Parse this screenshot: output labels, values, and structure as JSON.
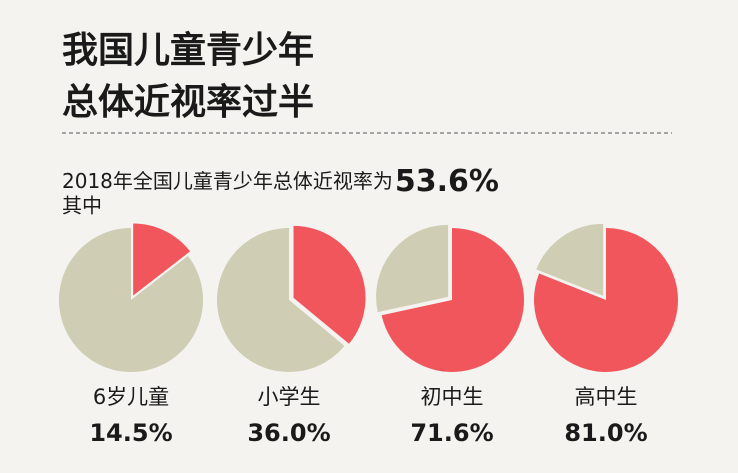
{
  "header": {
    "title_lines": [
      "我国儿童青少年",
      "总体近视率过半"
    ]
  },
  "subtitle": {
    "text": "2018年全国儿童青少年总体近视率为",
    "highlight": "53.6%"
  },
  "note": "其中",
  "chart_data": [
    {
      "type": "pie",
      "title": "6岁儿童",
      "values": [
        14.5
      ],
      "value_labels": [
        "14.5%"
      ],
      "color": "#f2565d",
      "rest_color": "#cfcdb3"
    },
    {
      "type": "pie",
      "title": "小学生",
      "values": [
        36.0
      ],
      "value_labels": [
        "36.0%"
      ],
      "color": "#f2565d",
      "rest_color": "#cfcdb3"
    },
    {
      "type": "pie",
      "title": "初中生",
      "values": [
        71.6
      ],
      "value_labels": [
        "71.6%"
      ],
      "color": "#f2565d",
      "rest_color": "#cfcdb3"
    },
    {
      "type": "pie",
      "title": "高中生",
      "values": [
        81.0
      ],
      "value_labels": [
        "81.0%"
      ],
      "color": "#f2565d",
      "rest_color": "#cfcdb3"
    }
  ]
}
